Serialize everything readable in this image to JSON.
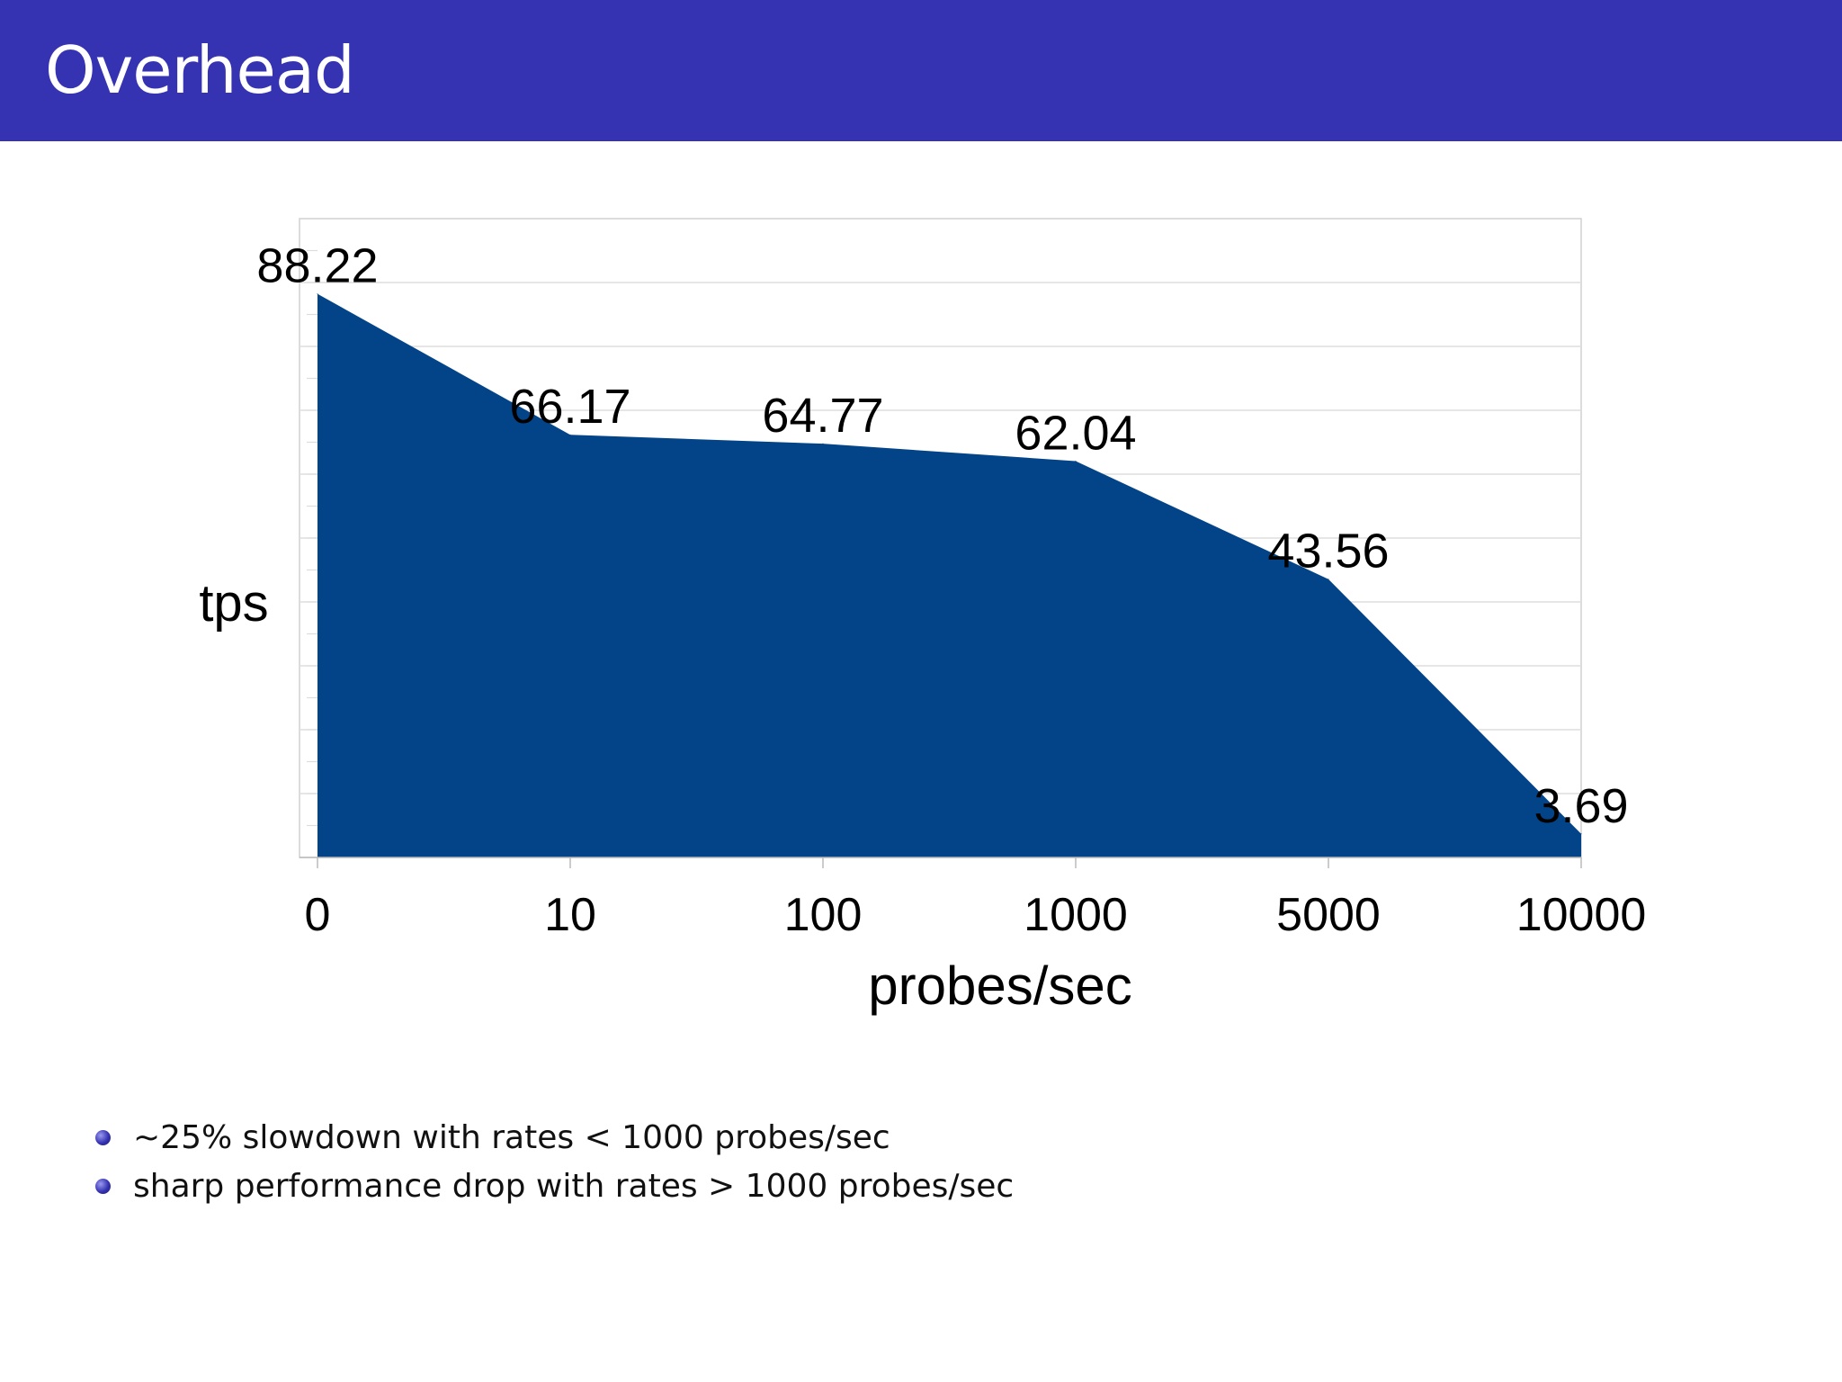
{
  "slide": {
    "title": "Overhead",
    "title_bar_color": "#3533b2"
  },
  "bullets": [
    "~25% slowdown with rates < 1000 probes/sec",
    "sharp performance drop with rates > 1000 probes/sec"
  ],
  "chart_data": {
    "type": "area",
    "categories": [
      "0",
      "10",
      "100",
      "1000",
      "5000",
      "10000"
    ],
    "values": [
      88.22,
      66.17,
      64.77,
      62.04,
      43.56,
      3.69
    ],
    "data_labels": [
      "88.22",
      "66.17",
      "64.77",
      "62.04",
      "43.56",
      "3.69"
    ],
    "xlabel": "probes/sec",
    "ylabel": "tps",
    "ylim": [
      0,
      100
    ],
    "grid": true,
    "legend": false,
    "fill_color": "#034488"
  }
}
